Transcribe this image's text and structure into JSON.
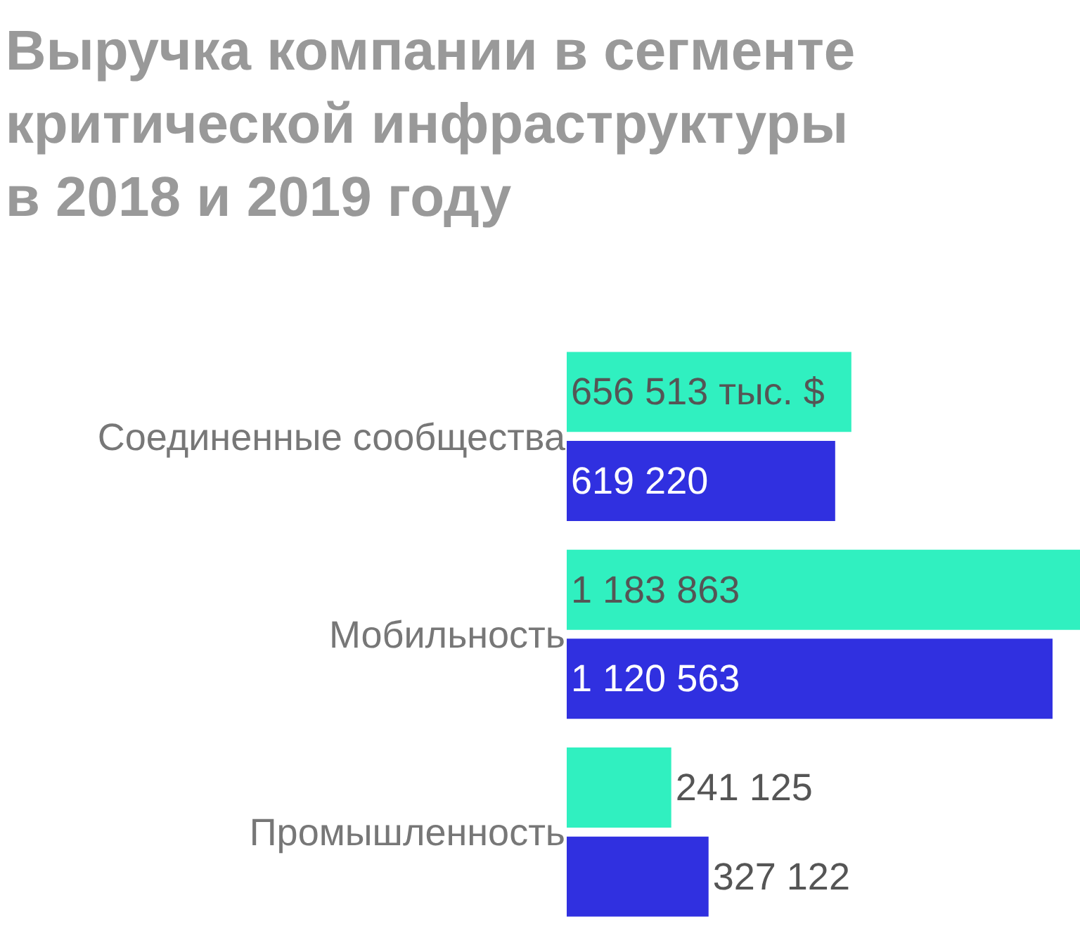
{
  "chart_data": {
    "type": "bar",
    "orientation": "horizontal",
    "title": "Выручка компании в сегменте критической инфраструктуры в 2018 и 2019 году",
    "categories": [
      "Соединенные сообщества",
      "Мобильность",
      "Промышленность"
    ],
    "series": [
      {
        "color": "#30f0c0",
        "values": [
          656513,
          1183863,
          241125
        ],
        "value_labels": [
          "656 513 тыс. $",
          "1 183 863",
          "241 125"
        ]
      },
      {
        "color": "#3030e0",
        "values": [
          619220,
          1120563,
          327122
        ],
        "value_labels": [
          "619 220",
          "1 120 563",
          "327 122"
        ]
      }
    ]
  }
}
